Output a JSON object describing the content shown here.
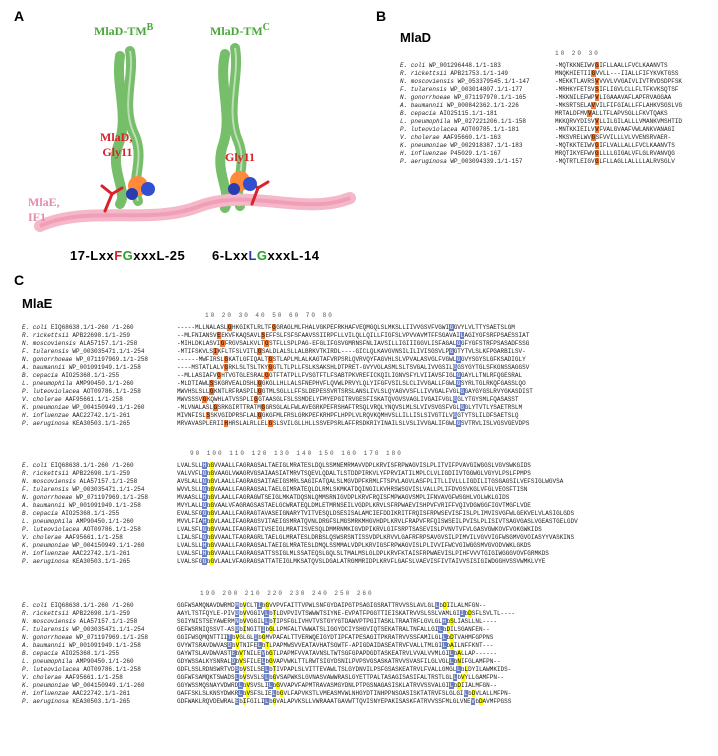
{
  "labels": {
    "A": "A",
    "B": "B",
    "C": "C",
    "mlad_title": "MlaD",
    "mlae_title": "MlaE",
    "mlad_tmB": "MlaD-TM",
    "mlad_tmB_sup": "B",
    "mlad_tmC": "MlaD-TM",
    "mlad_tmC_sup": "C",
    "mlad_gly11_left": "MlaD,",
    "gly11": "Gly11",
    "mlae_if1": "MlaE,\nIF1",
    "motif_left_pre": "17-Lxx",
    "motif_left_F": "F",
    "motif_left_G": "G",
    "motif_left_post": "xxxL-25",
    "motif_right_pre": "6-Lxx",
    "motif_right_L": "L",
    "motif_right_G": "G",
    "motif_right_post": "xxxL-14"
  },
  "colors": {
    "green": "#8fcf7f",
    "pink": "#f4b8c9",
    "red": "#d9222a",
    "blue": "#2b3bb0",
    "orange_hl": "#f07d3a",
    "blue_hl": "#6a7fc4",
    "grey": "#777"
  },
  "mlad_ruler": "          10        20        30",
  "mlad_rows": [
    {
      "sp": "E. coli",
      "acc": "WP_001296448.1/1-183",
      "seq": "-MQTKKNEIWV",
      "hl": "G",
      "rest": "IFLLAALLFVCLKAANVTS"
    },
    {
      "sp": "R. rickettsii",
      "acc": "APB21753.1/1-149",
      "seq": "MNQKHIETII",
      "hl": "G",
      "rest": "VVLL---IIALLFIFYKVKTGSS"
    },
    {
      "sp": "N. moscoviensis",
      "acc": "WP_053379545.1/1-147",
      "seq": "-MEKKTLAVRS",
      "hl": "V",
      "rest": "VVVLVVGAIVLIVTRVDSDPFSK"
    },
    {
      "sp": "F. tularensis",
      "acc": "WP_003014807.1/1-177",
      "seq": "-MRHKYFETSV",
      "hl": "S",
      "rest": "IFLIGVLCLLFLTFKVKSQTSF"
    },
    {
      "sp": "N. gonorrhoeae",
      "acc": "WP_071197970.1/1-165",
      "seq": "-MKKNILEFWP",
      "hl": "V",
      "rest": "LIGAAAVAFLAPFRVAGGAA"
    },
    {
      "sp": "A. baumannii",
      "acc": "WP_000842362.1/1-226",
      "seq": "-MKSRTSELA",
      "hl": "V",
      "rest": "VILFIFGIALLFFLAHKVSGSLVG"
    },
    {
      "sp": "B. cepacia",
      "acc": "AIO25115.1/1-181",
      "seq": "MRTALDFMV",
      "hl": "V",
      "rest": "ALLTFLAPVSGLLFKVTQAKS"
    },
    {
      "sp": "L. pneumophila",
      "acc": "WP_027221206.1/1-158",
      "seq": "MKKQRVYDISV",
      "hl": "V",
      "rest": "LLILGILALLLVMANKVMSHTID"
    },
    {
      "sp": "P. luteoviolacea",
      "acc": "AOT09785.1/1-181",
      "seq": "-MNTKKIEILV",
      "hl": "V",
      "rest": "FVALGVAAFVWLANKVANAGI"
    },
    {
      "sp": "V. cholerae",
      "acc": "AAF95660.1/1-163",
      "seq": "-MKSVRELWV",
      "hl": "G",
      "rest": "SFVVILLLVLVVENSRVAER-"
    },
    {
      "sp": "K. pneumoniae",
      "acc": "WP_002918387.1/1-183",
      "seq": "-MQTKKTEIWV",
      "hl": "G",
      "rest": "IFLVALLALLFVCLKAANVTS"
    },
    {
      "sp": "H. influenzae",
      "acc": "P45029.1/1-167",
      "seq": "MRQTIKYEFWV",
      "hl": "G",
      "rest": "LLLLGIGALVFLGLRVANVQG"
    },
    {
      "sp": "P. aeruginosa",
      "acc": "WP_003094339.1/1-157",
      "seq": "-MQTRTLEIGV",
      "hl": "G",
      "rest": "LFLLAGLLALLLLALRVSGLV"
    }
  ],
  "mlae_species": [
    {
      "sp": "E. coli",
      "acc": "EIQ68638.1/1-260 /1-260"
    },
    {
      "sp": "R. rickettsii",
      "acc": "APB22698.1/1-259"
    },
    {
      "sp": "N. moscoviensis",
      "acc": "ALA57157.1/1-258"
    },
    {
      "sp": "F. tularensis",
      "acc": "WP_003035471.1/1-254"
    },
    {
      "sp": "N. gonorrhoeae",
      "acc": "WP_071197969.1/1-258"
    },
    {
      "sp": "A. baumannii",
      "acc": "WP_001091949.1/1-258"
    },
    {
      "sp": "B. cepacia",
      "acc": "AIO25368.1/1-255"
    },
    {
      "sp": "L. pneumophila",
      "acc": "AMP90450.1/1-260"
    },
    {
      "sp": "P. luteoviolacea",
      "acc": "AOT09786.1/1-258"
    },
    {
      "sp": "V. cholerae",
      "acc": "AAF95661.1/1-258"
    },
    {
      "sp": "K. pneumoniae",
      "acc": "WP_004150949.1/1-260"
    },
    {
      "sp": "H. influenzae",
      "acc": "AAC22742.1/1-261"
    },
    {
      "sp": "P. aeruginosa",
      "acc": "KEA30503.1/1-265"
    }
  ],
  "mlae_block1_ruler": "        10        20        30        40        50        60        70        80",
  "mlae_block1": [
    "-----MLLNALASL|o|G|HKGIKTLRLTF|o|G|GRAGLMLFHALVGKPEFRKHAFVEQMGQLSLMKSLLIIVVGSVFVGWI|b|G|GVYLVLTTYSAETSLGM",
    "--MLFNIANSV|o|E|EKVFKAQSAVL|o|S|EFFSLFSFSFAAVSSIIRPFLLVILQLLQILLFIGFSLVPVVAVMTFFSGAVAI|b|L|AGIYGFSRFPSAESSIAT",
    "-MIHLDKLASVI|o|G|FRGVSALKVLT|o|G|STFLLSPLPAG-EFGLIFGSVGMRNSFNLIAVSILLIGIIIGGVLISFAGAL|b|G|GFYGFSTRFPSASADFSSG",
    "-MTIFSKVLS|o|I|KFLTFSLVITL|o|G|SALDLALSLLALBRKVTKIRDL----GICLQLKAVGVNSILILIVISGSVLP|b|G|GTYTVLSLKFPGARBILSV-",
    "------MWFIRSL|o|G|KATLGFIQALT|o|G|STLAPLMLALKAGTAFVRPSRLQVRVQYFAGVHLSLVPVALASVGLFVGWL|b|G|GVYSGYSLGFKSADIGLY",
    "----MSTATLALV|o|G|RKLSLTSLTKY|o|G|GTLTLPLLFSLKSAKSHLDTPRET-GVYVGLASMLSLTSVGALIVVGSIL|b|G|GSYGYTGLSFKGNSSAGGSV",
    "--MLLASIAFV|o|G|HTVGTGLESRAL|o|G|GTFTATPLLFVSGTFTLFSABTPKVREFICKQILIGNVSFYLVIIAVSFIGL|b|G|GAYLLTNLRFQGESRAL",
    "-MLDTIAWL|o|S|SKGRVEALDSHL|o|G|GKGLLHLLALSFNEPHVFLQVWLPRVYLQLYIFGFVSILSLCLIVVGALLFGWL|b|G|SYRLTGLRKQFGASSLQO",
    "MWVHSLSLL|o|G|KNTLRFRASPIL|o|G|GTMLSGLLLFFSLDEPESSVRTSRSLANSLIVLSLQYAGVVSFLLIVVGALFVGL|b|G|GAYGYGSLRVYGKASDIST",
    "MWVSSSV|o|G|KQWHLATVSSPLI|o|G|GTAASGLFSLSSMDELYFMYEPGITRVGESFISKATQVGVSVAGLIVGAIFVGL|b|G|GLYTGYSMLFQASASST",
    "-MLVNALASL|o|G|SRKGIRTTRATM|o|G|GRSGLALFWLAVEGRKPEFRSHAFTRSQLVRQLYNQVSLMLSLVIVSVGSFVGL|b|G|GLYTVTLYSAETRSLM",
    "MIVNFISL|o|S|SKVGIDPRSFLAL|o|G|GKGFMLFRSLGRKPEFKRHPFLHPPLVLRQVKQMHVSLLILLISLSIVGTILV|b|G|GTYTSLILDFSAETSLQ",
    "MRVAVASPLERII|o|H|HRSLALRLLEL|o|G|SLSVILGLLHLLSSVEPSRLAFFRSDKRIYINAILSLVSLIVVGALIFGWL|b|G|SVTRVLISLVGSVGEVDPS"
  ],
  "mlae_block2_ruler": "    90       100       110       120       130       140       150       160       170       180",
  "mlae_block2": [
    "LVALSLL|b|H|b|L|GPVVAALLFAGRAGSALTAEIGLMRATESLDQLSSMNEMRMAVVDPLKRVISFRPWAGVISLPLITVIFPVAVGIWGGSLVGVSWKGIDS",
    "VALVVFL|b|G|b|L|GPVAAGLVWAGRVGSAIAASIATMRVTSQEVLQDALTLSTDDPIRKVLYFPRVIATILMPLCLVLIGDIIVTGGWGLVGYVLPSLFPMPS",
    "AVSLALL|b|G|b|L|GPVLAALLFAGRAGSAITAEIGSMRLSAGIFATQALSLMGVDPFKRMLFTSPVLAGVLASFPLITLLIVLLLIGDILITGSGAGSILVEFSIGLWGVSA",
    "WVVLSLL|b|G|b|L|GPVAAALLFAGRAGSALTAELGIMRATEQLDLRMLSKMKATDQINGILKVHRSWSGVISLVALLPLIFDVGSVKGLVFGLVEOSFTISN",
    "MVAASLL|b|H|b|L|GPVLAALLFAGRAGWTSEIGLMKATDQSNLQMMSRNIGVDPLKRVFRQISFMPWAGVSMPLIFNVAVGFWSGHLVOLWKLGIDS",
    "MVYLALL|b|G|b|A|GFVAALVFAGRAGSASTAELGCWRATEQLDMLETMRNSEILVGDPLKRVLSFRPWAEVISHPVFVRIFFVQIVDGWGGFIGVTMGFLVDE",
    "EVALSFG|b|G|b|L|GPVLAALLFAGRAGTAVASEIGNARYTVITVESQLDSESISALAMCIEFDDIKRITFRQISFRPWSEVISFISLPLIMVISVGFWLGEKVELVLASIGLGDS",
    "MVVLFIA|b|H|b|L|GPVLAALIFAGRAGSVITAEIGSMRATQVNLDRGFSLMGSMRKMHGVHDPLKRVLFRAPVFRFQISWSEILPVISLPLISIVTSAGVGASLVGEASTGELGDV",
    "LVALSFL|b|G|b|L|GPVVAALIFAGRAGTIVSEIGLMRATISVESQLDMMRNMKIGVDPIKRVLGIFSRPTSASEVISLPVNVTVFVLGASVGWKOVFVOKGWKIDS",
    "LIALSFL|b|G|b|L|GPVVAALTFAGRAGRLTAELGLMRATESLDRBSLQSWSRSNTISSVDPLKRVVLGAFRFRPSAVGVSILPIMVILVGVVIGFWSGMVGVOIASYYVASKINS",
    "LVALSLL|b|H|b|L|GPVVAALLFAGRAGSALTAEIGLMRATESLDMQLSSMMALVDPLKRVIGSFRPWAGVISLPLIVVIFWCVGIWGGSMVGVODVWKLGKDS",
    "LVALSFL|b|H|b|L|GPVVAALLFAGRAGSATTSSIGLMLSSATEQSLGQLSLTMALMSLGLDPLKRVFKTAISFRPWAEVISLPIHFVVVTGIGIWGGGVOVFGRMKDS",
    "LVALSFG|b|G|b|L|GPVLAALVFAGRAGSATTATEIGLMKSATQVSLDGALATRGMMRIDPLKRVFLGAFSLVAEVISFIVTAIVVSISIGIWDGGHVSSVWMKLVYE"
  ],
  "mlae_block3_ruler": "      190       200       210       220       230       240       250       260",
  "mlae_block3": [
    "GGFWSAMQNAVDWRMD|b|M|b|L|VNCLT|b|I|b|L|GSVVPVFAITTVPWLSNFGYDAIPGTPSAGIGSRATTRVVSSLAVLGL|b|L|b|I|DYIILALMFGN--",
    "AAYLTSTFQYLE-PIV|b|D|b|I|VFVGGIV|b|L|b|F|TSLDVPVIVTSWWWTSIYNE-EVPATFPGGTTIEISKATRVVSLSSLVAMLGI|b|I|b|I|DISFLSVLTL----",
    "SGIYNISTSEYAWERM|b|N|b|L|VGVGGIL|b|L|b|F|TFIPSFGLIVHVTVSTGYYGTDAWVPTPGITASKLTRAATRFLGVLGL|b|H|b|I|STLIASLLNL----",
    "GEFWSRNIQSSVT-AS|b|D|b|L|ISNGIT|b|I|b|M|GSLLPMFALTVWWATSLIGGYDCIYSHGVIQTSEKATRALTNFALLGI|b|L|b|F|DYILSGANFEN--",
    "GGIFWSQMQNTTII|b|T|b|L|VIGLGL|b|I|b|L|GSMVPAFALTTVERWQEIGYDTIPFATPESAGITPKRATRVVSSFAMILGL|b|L|b|I|DYTVAHMFGPPNS",
    "GVYWTSRAVDWVAS|b|D|b|L|VGTNIFE|b|L|b|L|TTLPAPMWSVVEATAVHATSGWTF-APIGDAIDASEATRVFVALLTMLGI|b|L|b|I|ASILNFFKNT---",
    "GAYWTSLAVDWVAST|b|E|b|L|VGTNILE|b|V|b|L|GSTLPAPMFVVATAVNSLTWTSGFGPAPDGDTASKEATRVLVVALVVMLGI|b|L|b|I|ASLLAP------",
    "GDYWSSALKYSNRAL|b|D|b|L|VASFILE|b|L|b|L|GSVAPVWKLTTLRWTSIGYDSNILPVPSVGSASKATRVVSVASFILGLVGL|b|L|b|I|NYIFGLAMFPN--",
    "GDFLSSLRDNSWRTVD|b|S|b|L|VVSILSE|b|L|b|M|TTIVPAPLSLVITTEVAWLTSLGYDNVILPSFGSASKEATRVLFVALLGMGL|b|L|b|I|LIDYILAWMKIDS-",
    "GGFWFSAMQKTSWADS|b|L|b|L|VGSVSLS|b|L|b|M|GSVSAPWKSLGVNASVAWWRASLGYETTPALTASAGISASIFALTRSTLGL|b|L|b|I|VDYLLGAMFPN--",
    "GGYWSSMQSNAYVDWRD|b|L|b|L|VGSVSLI|b|L|b|I|GSVVAPVFAPMTRAVASMGYDNLPTPGSNAGASISKLATRVVSSVALGI|b|L|b|I|DYIIALMFGN--",
    "GAFFSKLSLKNSYDWKR|b|L|b|M|VGSFSLIE|b|L|b|L|GSVLFAPVKSTLVMEASMVWLNHGYDTINHPPNSOASISKTATRVFSLGLGI|b|L|b|I|DYVLALLMFPN-",
    "GDFWAKLRQVDEWRAL|b|E|b|L|IFFGILI|b|L|b|L|GSVALAPVKSLLVWRAAATGAVWTTQVISNYEPAKISASKFATRVVSSFMLGLVNE|b|V|b|VIDFAVMFPGSS"
  ]
}
